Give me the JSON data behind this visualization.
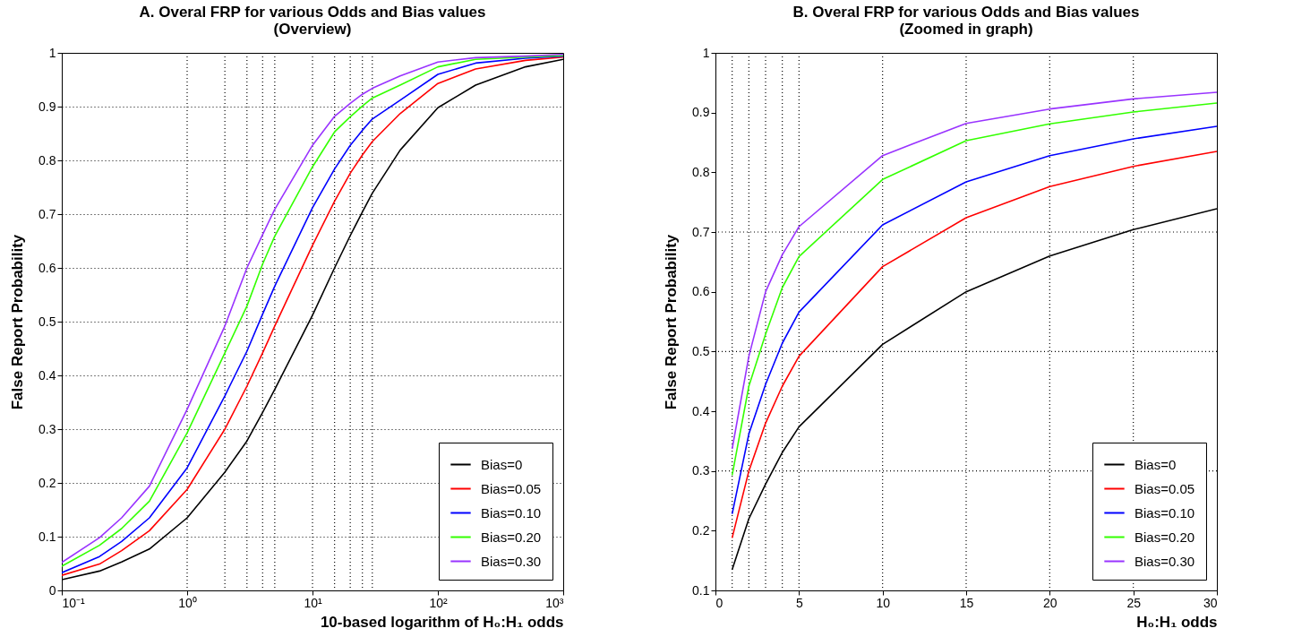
{
  "chart_data": [
    {
      "type": "line",
      "title": "A. Overal FRP for various Odds and Bias values\n(Overview)",
      "xlabel": "10-based logarithm of H₀:H₁ odds",
      "ylabel": "False Report Probability",
      "log": "x",
      "x": [
        0.1,
        0.2,
        0.3,
        0.5,
        1,
        2,
        3,
        4,
        5,
        10,
        15,
        20,
        25,
        30,
        50,
        100,
        200,
        500,
        1000
      ],
      "xlim": [
        0.1,
        1000
      ],
      "xticks": [
        {
          "value": 0.1,
          "label": "10⁻¹"
        },
        {
          "value": 1,
          "label": "10⁰"
        },
        {
          "value": 10,
          "label": "10¹"
        },
        {
          "value": 100,
          "label": "10²"
        },
        {
          "value": 1000,
          "label": "10³"
        }
      ],
      "ylim": [
        0,
        1
      ],
      "yticks": [
        0,
        0.1,
        0.2,
        0.3,
        0.4,
        0.5,
        0.6,
        0.7,
        0.8,
        0.9,
        1
      ],
      "grid": "y",
      "legend": "bottom right",
      "line_style": "solid",
      "ref_lines": [
        {
          "axis": "x",
          "value": 1,
          "color": "#000000",
          "line_style": "dotted"
        },
        {
          "axis": "x",
          "value": 2,
          "color": "#000000",
          "line_style": "dotted"
        },
        {
          "axis": "x",
          "value": 3,
          "color": "#000000",
          "line_style": "dotted"
        },
        {
          "axis": "x",
          "value": 4,
          "color": "#000000",
          "line_style": "dotted"
        },
        {
          "axis": "x",
          "value": 5,
          "color": "#000000",
          "line_style": "dotted"
        },
        {
          "axis": "x",
          "value": 10,
          "color": "#000000",
          "line_style": "dotted"
        },
        {
          "axis": "x",
          "value": 15,
          "color": "#000000",
          "line_style": "dotted"
        },
        {
          "axis": "x",
          "value": 20,
          "color": "#000000",
          "line_style": "dotted"
        },
        {
          "axis": "x",
          "value": 25,
          "color": "#000000",
          "line_style": "dotted"
        },
        {
          "axis": "x",
          "value": 30,
          "color": "#000000",
          "line_style": "dotted"
        }
      ],
      "series": [
        {
          "name": "Bias=0",
          "color": "#000000",
          "values": [
            0.02,
            0.036,
            0.053,
            0.077,
            0.135,
            0.22,
            0.278,
            0.331,
            0.374,
            0.512,
            0.6,
            0.66,
            0.704,
            0.739,
            0.819,
            0.898,
            0.94,
            0.974,
            0.988
          ]
        },
        {
          "name": "Bias=0.05",
          "color": "#ff0000",
          "values": [
            0.028,
            0.049,
            0.074,
            0.111,
            0.188,
            0.3,
            0.38,
            0.442,
            0.492,
            0.642,
            0.724,
            0.776,
            0.81,
            0.835,
            0.887,
            0.943,
            0.97,
            0.986,
            0.992
          ]
        },
        {
          "name": "Bias=0.10",
          "color": "#0000ff",
          "values": [
            0.033,
            0.063,
            0.091,
            0.135,
            0.228,
            0.362,
            0.445,
            0.514,
            0.566,
            0.712,
            0.784,
            0.828,
            0.856,
            0.877,
            0.912,
            0.96,
            0.981,
            0.99,
            0.994
          ]
        },
        {
          "name": "Bias=0.20",
          "color": "#33ff00",
          "values": [
            0.045,
            0.084,
            0.115,
            0.166,
            0.293,
            0.442,
            0.529,
            0.607,
            0.659,
            0.788,
            0.853,
            0.881,
            0.901,
            0.916,
            0.94,
            0.974,
            0.988,
            0.992,
            0.995
          ]
        },
        {
          "name": "Bias=0.30",
          "color": "#9933ff",
          "values": [
            0.052,
            0.098,
            0.135,
            0.194,
            0.337,
            0.492,
            0.6,
            0.662,
            0.709,
            0.828,
            0.882,
            0.906,
            0.923,
            0.934,
            0.957,
            0.983,
            0.991,
            0.994,
            0.997
          ]
        }
      ]
    },
    {
      "type": "line",
      "title": "B. Overal FRP for various Odds and Bias values\n(Zoomed in graph)",
      "xlabel": "H₀:H₁ odds",
      "ylabel": "False Report Probability",
      "x": [
        1,
        2,
        3,
        4,
        5,
        10,
        15,
        20,
        25,
        30
      ],
      "xlim": [
        0,
        30
      ],
      "xticks": [
        0,
        5,
        10,
        15,
        20,
        25,
        30
      ],
      "ylim": [
        0.1,
        1
      ],
      "yticks": [
        0.1,
        0.2,
        0.3,
        0.4,
        0.5,
        0.6,
        0.7,
        0.8,
        0.9,
        1
      ],
      "legend": "bottom right",
      "line_style": "solid",
      "ref_lines": [
        {
          "axis": "x",
          "value": 1,
          "color": "#000000",
          "line_style": "dotted"
        },
        {
          "axis": "x",
          "value": 2,
          "color": "#000000",
          "line_style": "dotted"
        },
        {
          "axis": "x",
          "value": 3,
          "color": "#000000",
          "line_style": "dotted"
        },
        {
          "axis": "x",
          "value": 4,
          "color": "#000000",
          "line_style": "dotted"
        },
        {
          "axis": "x",
          "value": 5,
          "color": "#000000",
          "line_style": "dotted"
        },
        {
          "axis": "x",
          "value": 10,
          "color": "#000000",
          "line_style": "dotted"
        },
        {
          "axis": "x",
          "value": 15,
          "color": "#000000",
          "line_style": "dotted"
        },
        {
          "axis": "x",
          "value": 20,
          "color": "#000000",
          "line_style": "dotted"
        },
        {
          "axis": "x",
          "value": 25,
          "color": "#000000",
          "line_style": "dotted"
        },
        {
          "axis": "y",
          "value": 0.3,
          "color": "#000000",
          "line_style": "dotted"
        },
        {
          "axis": "y",
          "value": 0.5,
          "color": "#000000",
          "line_style": "dotted"
        },
        {
          "axis": "y",
          "value": 0.7,
          "color": "#000000",
          "line_style": "dotted"
        }
      ],
      "series": [
        {
          "name": "Bias=0",
          "color": "#000000",
          "values": [
            0.135,
            0.22,
            0.278,
            0.331,
            0.374,
            0.512,
            0.6,
            0.66,
            0.704,
            0.739
          ]
        },
        {
          "name": "Bias=0.05",
          "color": "#ff0000",
          "values": [
            0.188,
            0.3,
            0.38,
            0.442,
            0.492,
            0.642,
            0.724,
            0.776,
            0.81,
            0.835
          ]
        },
        {
          "name": "Bias=0.10",
          "color": "#0000ff",
          "values": [
            0.228,
            0.362,
            0.445,
            0.514,
            0.566,
            0.712,
            0.784,
            0.828,
            0.856,
            0.877
          ]
        },
        {
          "name": "Bias=0.20",
          "color": "#33ff00",
          "values": [
            0.293,
            0.442,
            0.529,
            0.607,
            0.659,
            0.788,
            0.853,
            0.881,
            0.901,
            0.916
          ]
        },
        {
          "name": "Bias=0.30",
          "color": "#9933ff",
          "values": [
            0.337,
            0.492,
            0.6,
            0.662,
            0.709,
            0.828,
            0.882,
            0.906,
            0.923,
            0.934
          ]
        }
      ]
    }
  ]
}
